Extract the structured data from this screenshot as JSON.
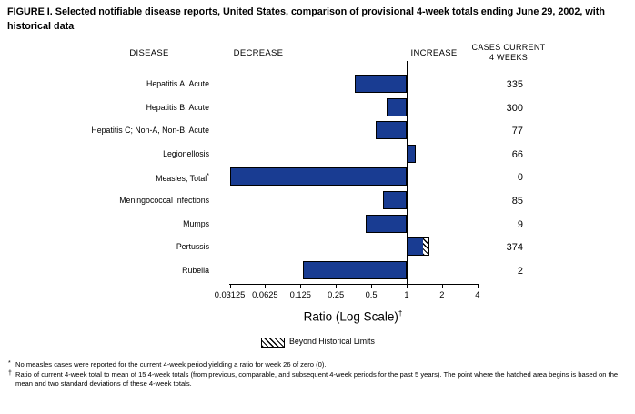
{
  "title": "FIGURE I. Selected notifiable disease reports, United States, comparison of provisional 4-week totals ending June 29, 2002, with historical data",
  "headers": {
    "disease": "DISEASE",
    "decrease": "DECREASE",
    "increase": "INCREASE",
    "cases_line1": "CASES CURRENT",
    "cases_line2": "4 WEEKS"
  },
  "chart_data": {
    "type": "bar",
    "orientation": "horizontal",
    "scale": "log",
    "title": "Ratio (Log Scale)",
    "axis_label_sup": "†",
    "xlim": [
      0.03125,
      4
    ],
    "ticks": [
      "0.03125",
      "0.0625",
      "0.125",
      "0.25",
      "0.5",
      "1",
      "2",
      "4"
    ],
    "tick_values": [
      0.03125,
      0.0625,
      0.125,
      0.25,
      0.5,
      1,
      2,
      4
    ],
    "baseline_ratio": 1,
    "bar_color": "#193c92",
    "rows": [
      {
        "disease": "Hepatitis A, Acute",
        "cases": "335",
        "ratio": 0.36
      },
      {
        "disease": "Hepatitis B, Acute",
        "cases": "300",
        "ratio": 0.68
      },
      {
        "disease": "Hepatitis C; Non-A, Non-B, Acute",
        "cases": "77",
        "ratio": 0.55
      },
      {
        "disease": "Legionellosis",
        "cases": "66",
        "ratio": 1.2
      },
      {
        "disease": "Measles, Total",
        "sup": "*",
        "cases": "0",
        "ratio": 0.03125
      },
      {
        "disease": "Meningococcal Infections",
        "cases": "85",
        "ratio": 0.63
      },
      {
        "disease": "Mumps",
        "cases": "9",
        "ratio": 0.45
      },
      {
        "disease": "Pertussis",
        "cases": "374",
        "ratio": 1.4,
        "beyond_limits_to": 1.56
      },
      {
        "disease": "Rubella",
        "cases": "2",
        "ratio": 0.13
      }
    ],
    "legend": {
      "label": "Beyond Historical Limits",
      "swatch": "hatched"
    }
  },
  "footnotes": [
    {
      "marker": "*",
      "text": "No measles cases were reported for the current 4-week period yielding a ratio for week 26 of zero (0)."
    },
    {
      "marker": "†",
      "text": "Ratio of current 4-week total to mean of 15 4-week totals (from previous, comparable, and subsequent 4-week periods for the past 5 years). The point where the hatched area begins is based on the mean and two standard deviations of these 4-week totals."
    }
  ]
}
